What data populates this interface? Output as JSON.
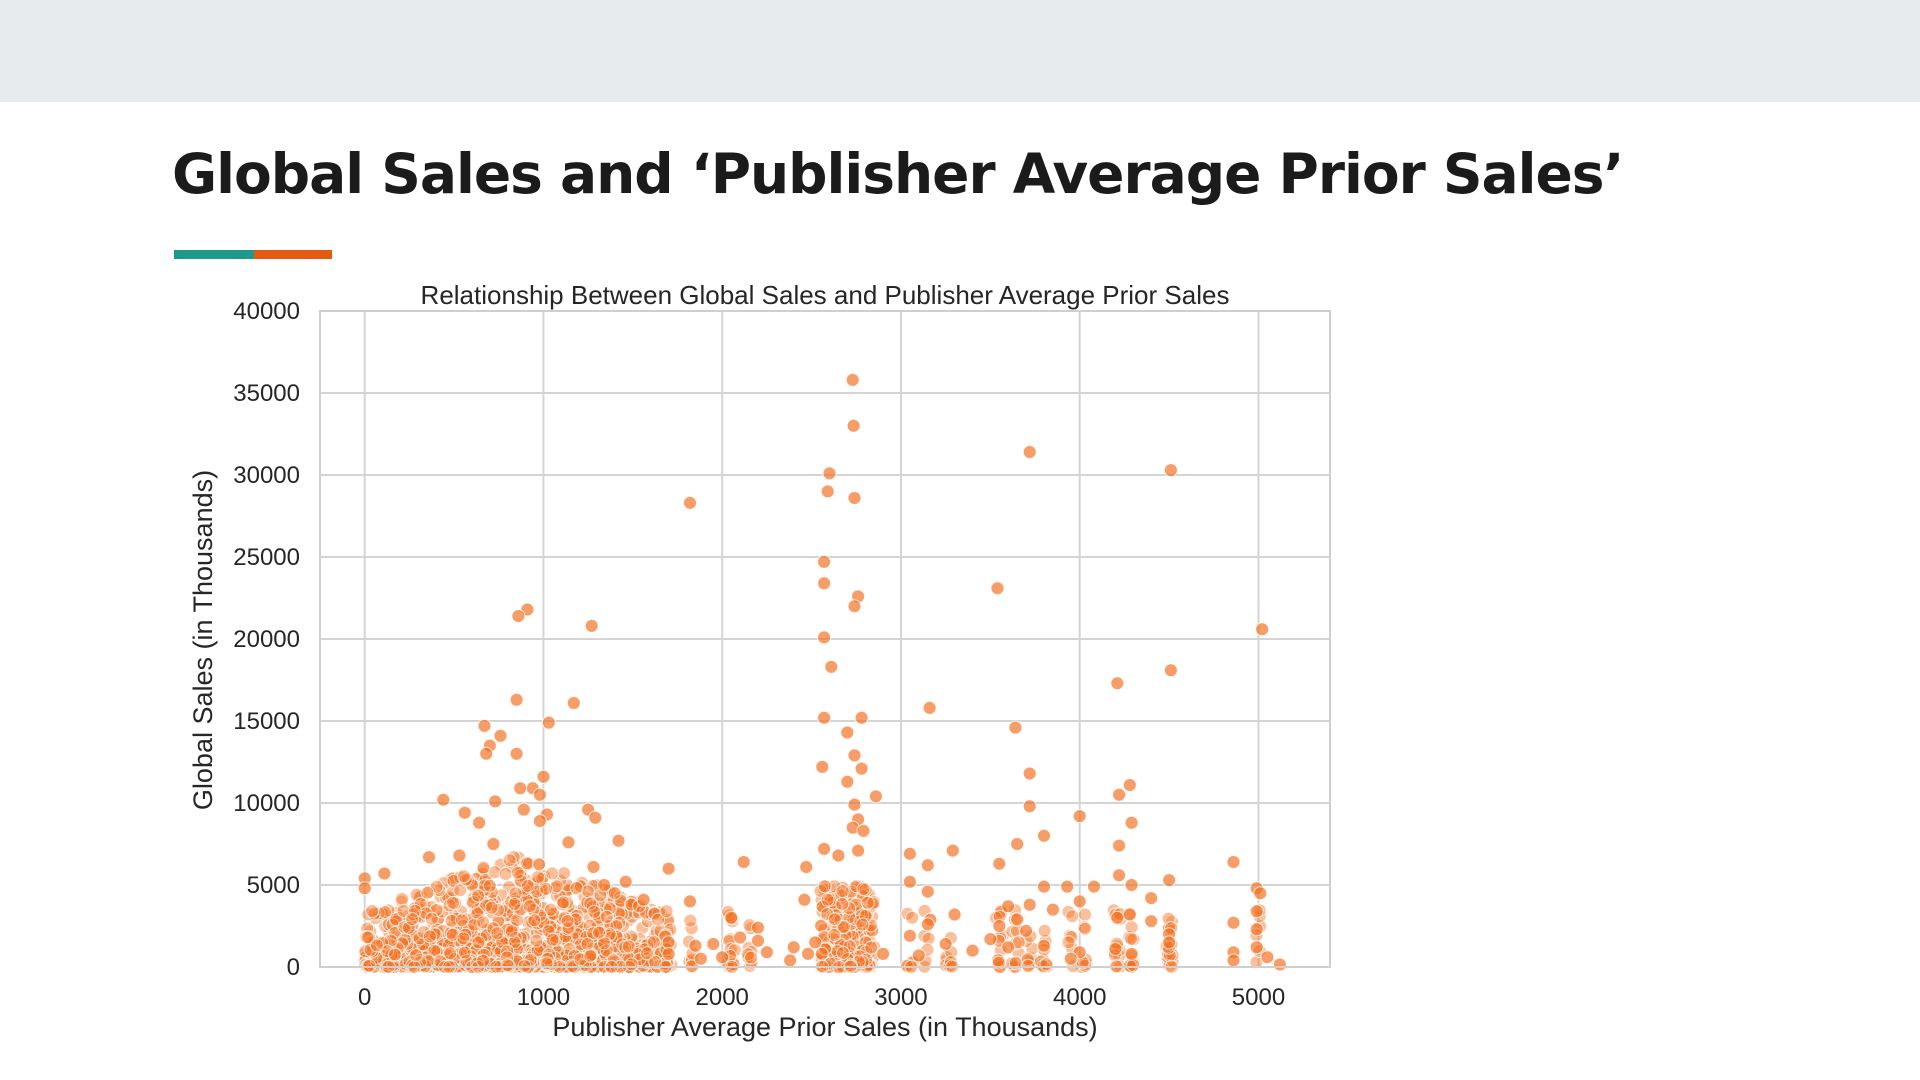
{
  "slide": {
    "title": "Global Sales and ‘Publisher Average Prior Sales’",
    "accent_colors": [
      "#1f9a8a",
      "#e55a12"
    ]
  },
  "chart_data": {
    "type": "scatter",
    "title": "Relationship Between Global Sales and Publisher Average Prior Sales",
    "xlabel": "Publisher Average Prior Sales (in Thousands)",
    "ylabel": "Global Sales (in Thousands)",
    "xlim": [
      -250,
      5400
    ],
    "ylim": [
      0,
      40000
    ],
    "xticks": [
      0,
      1000,
      2000,
      3000,
      4000,
      5000
    ],
    "yticks": [
      0,
      5000,
      10000,
      15000,
      20000,
      25000,
      30000,
      35000,
      40000
    ],
    "grid": true,
    "legend": "none",
    "point_color": "#f37021",
    "points": [
      [
        2730,
        35800
      ],
      [
        2735,
        33000
      ],
      [
        2600,
        30100
      ],
      [
        2590,
        29000
      ],
      [
        2740,
        28600
      ],
      [
        1820,
        28300
      ],
      [
        3720,
        31400
      ],
      [
        4510,
        30300
      ],
      [
        2570,
        24700
      ],
      [
        2570,
        23400
      ],
      [
        3540,
        23100
      ],
      [
        2760,
        22600
      ],
      [
        2740,
        22000
      ],
      [
        910,
        21800
      ],
      [
        860,
        21400
      ],
      [
        1270,
        20800
      ],
      [
        5020,
        20600
      ],
      [
        2570,
        20100
      ],
      [
        2610,
        18300
      ],
      [
        4510,
        18100
      ],
      [
        4210,
        17300
      ],
      [
        850,
        16300
      ],
      [
        1170,
        16100
      ],
      [
        3160,
        15800
      ],
      [
        2780,
        15200
      ],
      [
        2570,
        15200
      ],
      [
        1030,
        14900
      ],
      [
        3640,
        14600
      ],
      [
        670,
        14700
      ],
      [
        760,
        14100
      ],
      [
        2700,
        14300
      ],
      [
        700,
        13500
      ],
      [
        680,
        13000
      ],
      [
        850,
        13000
      ],
      [
        2740,
        12900
      ],
      [
        2560,
        12200
      ],
      [
        3720,
        11800
      ],
      [
        1000,
        11600
      ],
      [
        4280,
        11100
      ],
      [
        2700,
        11300
      ],
      [
        2780,
        12100
      ],
      [
        940,
        10900
      ],
      [
        870,
        10900
      ],
      [
        980,
        10500
      ],
      [
        4220,
        10500
      ],
      [
        2860,
        10400
      ],
      [
        440,
        10200
      ],
      [
        730,
        10100
      ],
      [
        2740,
        9900
      ],
      [
        3720,
        9800
      ],
      [
        1250,
        9600
      ],
      [
        1020,
        9300
      ],
      [
        4000,
        9200
      ],
      [
        560,
        9400
      ],
      [
        1290,
        9100
      ],
      [
        2760,
        9000
      ],
      [
        890,
        9600
      ],
      [
        640,
        8800
      ],
      [
        980,
        8900
      ],
      [
        4290,
        8800
      ],
      [
        2730,
        8500
      ],
      [
        3800,
        8000
      ],
      [
        2790,
        8300
      ],
      [
        1420,
        7700
      ],
      [
        720,
        7500
      ],
      [
        1140,
        7600
      ],
      [
        3650,
        7500
      ],
      [
        2760,
        7100
      ],
      [
        4220,
        7400
      ],
      [
        3290,
        7100
      ],
      [
        2570,
        7200
      ],
      [
        530,
        6800
      ],
      [
        360,
        6700
      ],
      [
        2470,
        6100
      ],
      [
        2650,
        6800
      ],
      [
        3050,
        6900
      ],
      [
        4860,
        6400
      ],
      [
        2120,
        6400
      ],
      [
        3550,
        6300
      ],
      [
        3150,
        6200
      ],
      [
        110,
        5700
      ],
      [
        1700,
        6000
      ],
      [
        4500,
        5300
      ],
      [
        1280,
        6100
      ],
      [
        3050,
        5200
      ],
      [
        4990,
        4800
      ],
      [
        3930,
        4900
      ],
      [
        4080,
        4900
      ],
      [
        4220,
        5600
      ],
      [
        4290,
        5000
      ],
      [
        3800,
        4900
      ],
      [
        5010,
        4500
      ],
      [
        3150,
        4600
      ],
      [
        1340,
        5000
      ],
      [
        1460,
        5200
      ],
      [
        0,
        5400
      ],
      [
        0,
        4800
      ],
      [
        1560,
        4100
      ],
      [
        1820,
        4000
      ],
      [
        2460,
        4100
      ],
      [
        4400,
        4200
      ],
      [
        3600,
        3700
      ],
      [
        3720,
        3800
      ],
      [
        4000,
        4000
      ],
      [
        3850,
        3500
      ],
      [
        4990,
        3400
      ],
      [
        4210,
        3000
      ],
      [
        4280,
        3200
      ],
      [
        4400,
        2800
      ],
      [
        4860,
        2700
      ],
      [
        4990,
        2300
      ],
      [
        4500,
        2000
      ],
      [
        2050,
        3000
      ],
      [
        2200,
        2400
      ],
      [
        3150,
        2600
      ],
      [
        3300,
        3200
      ],
      [
        2100,
        1800
      ],
      [
        1700,
        1500
      ],
      [
        1850,
        1300
      ],
      [
        1950,
        1400
      ],
      [
        2200,
        1600
      ],
      [
        2400,
        1200
      ],
      [
        2520,
        1500
      ],
      [
        3050,
        1900
      ],
      [
        3500,
        1700
      ],
      [
        3600,
        1200
      ],
      [
        3800,
        1300
      ],
      [
        4000,
        900
      ],
      [
        4200,
        1100
      ],
      [
        4290,
        800
      ],
      [
        4500,
        1500
      ],
      [
        4860,
        900
      ],
      [
        4990,
        1200
      ],
      [
        5050,
        600
      ],
      [
        5120,
        150
      ],
      [
        4860,
        400
      ],
      [
        3950,
        500
      ],
      [
        3100,
        700
      ],
      [
        2900,
        800
      ],
      [
        2000,
        600
      ],
      [
        1700,
        800
      ],
      [
        1880,
        500
      ],
      [
        2250,
        900
      ],
      [
        2380,
        400
      ],
      [
        2480,
        800
      ],
      [
        3250,
        1400
      ],
      [
        3400,
        1000
      ],
      [
        3550,
        2500
      ],
      [
        3700,
        2200
      ],
      [
        3650,
        2900
      ]
    ]
  }
}
